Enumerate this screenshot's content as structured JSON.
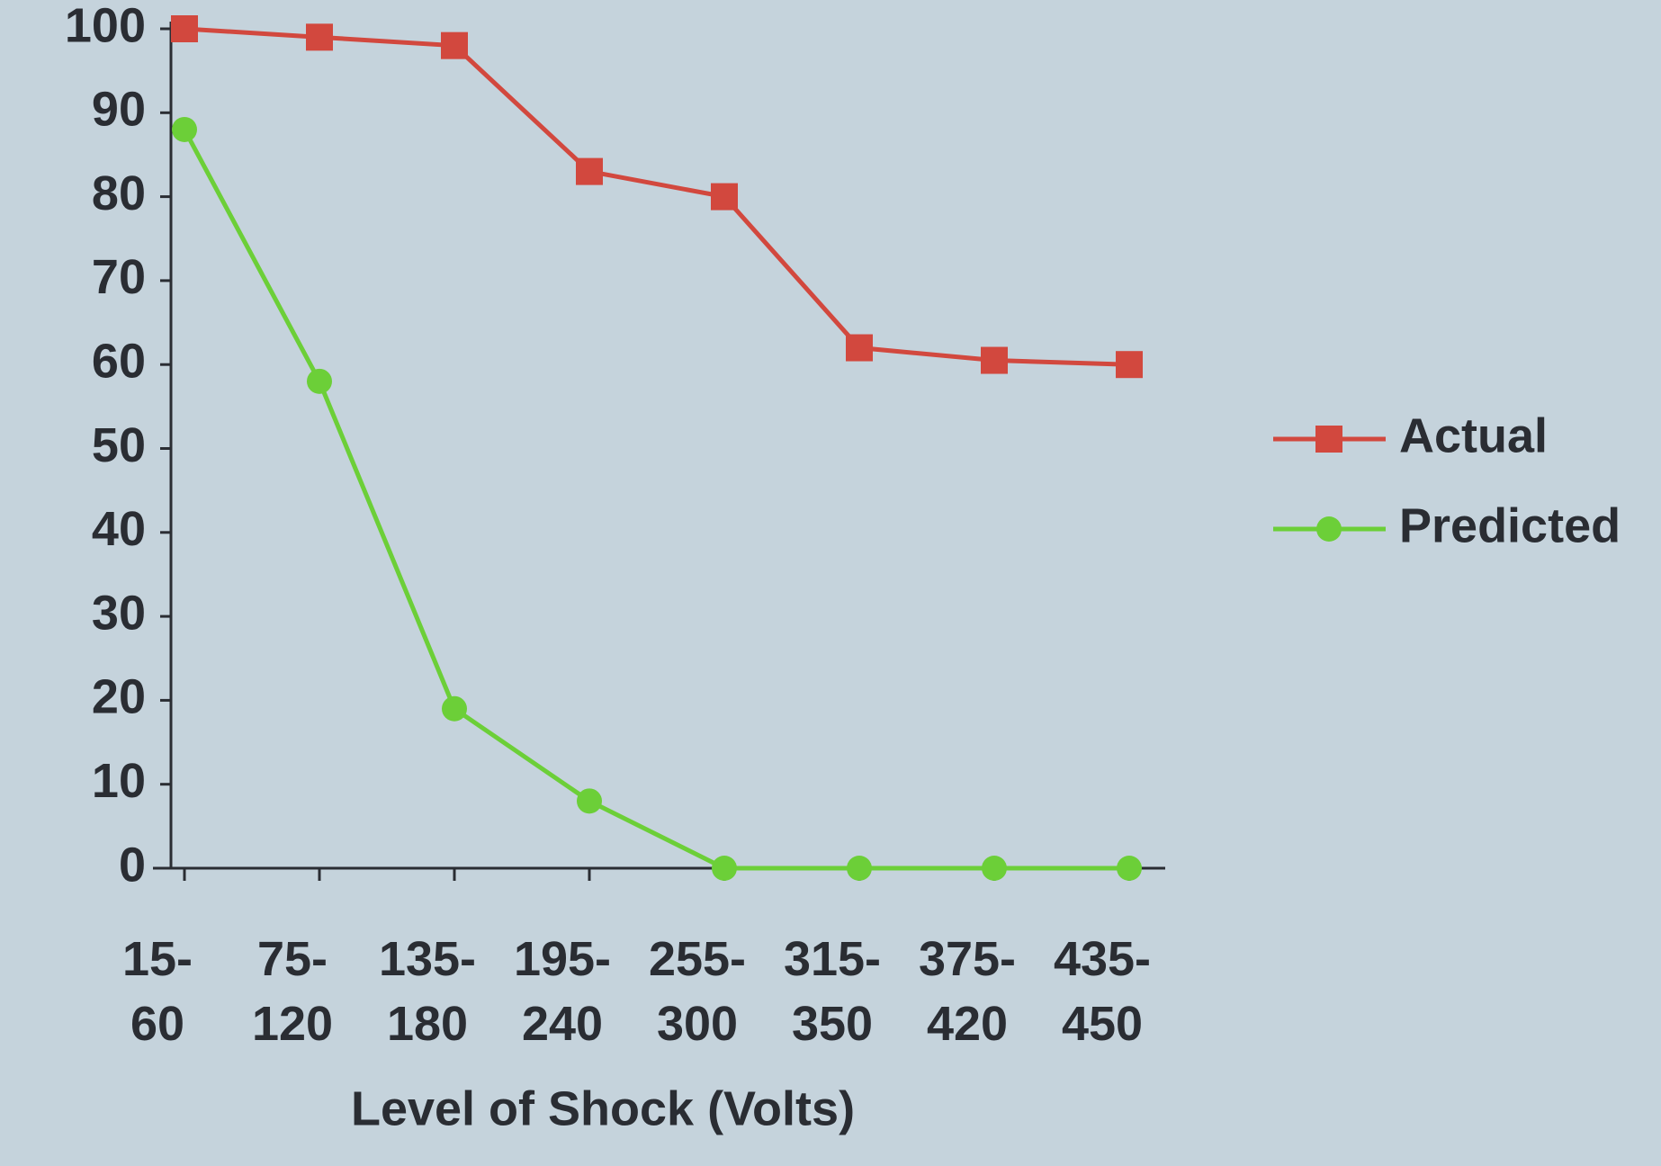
{
  "chart_data": {
    "type": "line",
    "x_label": "Level of Shock (Volts)",
    "categories": [
      "15-60",
      "75-120",
      "135-180",
      "195-240",
      "255-300",
      "315-350",
      "375-420",
      "435-450"
    ],
    "series": [
      {
        "name": "Actual",
        "color": "#d2483e",
        "marker": "square",
        "values": [
          100,
          99,
          98,
          83,
          80,
          62,
          60.5,
          60
        ]
      },
      {
        "name": "Predicted",
        "color": "#6ccf38",
        "marker": "circle",
        "values": [
          88,
          58,
          19,
          8,
          0,
          0,
          0,
          0
        ]
      }
    ],
    "ylim": [
      0,
      100
    ],
    "yticks": [
      0,
      10,
      20,
      30,
      40,
      50,
      60,
      70,
      80,
      90,
      100
    ],
    "grid": false,
    "legend": "right"
  }
}
